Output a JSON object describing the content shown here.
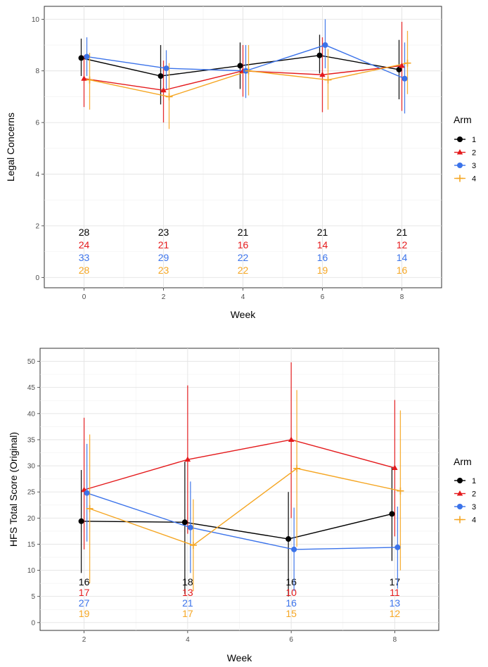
{
  "colors": {
    "1": "#000000",
    "2": "#e41a1c",
    "3": "#3b73ea",
    "4": "#f5a623"
  },
  "legend": {
    "title": "Arm",
    "items": [
      "1",
      "2",
      "3",
      "4"
    ],
    "placement": "right"
  },
  "chart_data": [
    {
      "type": "line",
      "xlabel": "Week",
      "ylabel": "Legal Concerns",
      "xlim": [
        -1.0,
        9.0
      ],
      "ylim": [
        -0.4,
        10.5
      ],
      "xticks": [
        "0",
        "2",
        "4",
        "6",
        "8"
      ],
      "yticks": [
        "0",
        "2",
        "4",
        "6",
        "8",
        "10"
      ],
      "grid": true,
      "x": [
        0,
        2,
        4,
        6,
        8
      ],
      "series": [
        {
          "name": "1",
          "values": [
            8.5,
            7.8,
            8.2,
            8.6,
            8.05
          ],
          "lower": [
            7.8,
            6.7,
            7.3,
            7.9,
            6.9
          ],
          "upper": [
            9.25,
            9.0,
            9.1,
            9.4,
            9.2
          ],
          "n": [
            "28",
            "23",
            "21",
            "21",
            "21"
          ]
        },
        {
          "name": "2",
          "values": [
            7.7,
            7.25,
            8.0,
            7.85,
            8.2
          ],
          "lower": [
            6.6,
            6.0,
            7.0,
            6.4,
            6.45
          ],
          "upper": [
            8.6,
            8.4,
            9.0,
            9.3,
            9.9
          ],
          "n": [
            "24",
            "21",
            "16",
            "14",
            "12"
          ]
        },
        {
          "name": "3",
          "values": [
            8.55,
            8.1,
            8.0,
            9.0,
            7.7
          ],
          "lower": [
            7.8,
            7.3,
            6.95,
            8.1,
            6.35
          ],
          "upper": [
            9.3,
            8.8,
            9.0,
            10.0,
            9.1
          ],
          "n": [
            "33",
            "29",
            "22",
            "16",
            "14"
          ]
        },
        {
          "name": "4",
          "values": [
            7.65,
            7.0,
            8.0,
            7.65,
            8.3
          ],
          "lower": [
            6.5,
            5.75,
            7.05,
            6.5,
            7.1
          ],
          "upper": [
            8.7,
            8.3,
            9.0,
            8.85,
            9.55
          ],
          "n": [
            "28",
            "23",
            "22",
            "19",
            "16"
          ]
        }
      ]
    },
    {
      "type": "line",
      "xlabel": "Week",
      "ylabel": "HFS Total Score (Original)",
      "xlim": [
        1.15,
        8.85
      ],
      "ylim": [
        -1.5,
        52.5
      ],
      "xticks": [
        "2",
        "4",
        "6",
        "8"
      ],
      "yticks": [
        "0",
        "5",
        "10",
        "15",
        "20",
        "25",
        "30",
        "35",
        "40",
        "45",
        "50"
      ],
      "grid": true,
      "x": [
        2,
        4,
        6,
        8
      ],
      "series": [
        {
          "name": "1",
          "values": [
            19.4,
            19.2,
            16.0,
            20.8
          ],
          "lower": [
            9.5,
            5.5,
            5.0,
            11.8
          ],
          "upper": [
            29.2,
            30.8,
            25.0,
            29.8
          ],
          "n": [
            "16",
            "18",
            "16",
            "17"
          ]
        },
        {
          "name": "2",
          "values": [
            25.4,
            31.2,
            35.0,
            29.6
          ],
          "lower": [
            14.0,
            17.0,
            20.0,
            16.5
          ],
          "upper": [
            39.2,
            45.4,
            49.8,
            42.6
          ],
          "n": [
            "17",
            "13",
            "10",
            "11"
          ]
        },
        {
          "name": "3",
          "values": [
            24.8,
            18.2,
            14.0,
            14.4
          ],
          "lower": [
            15.5,
            9.5,
            6.0,
            6.5
          ],
          "upper": [
            34.2,
            27.0,
            22.0,
            22.2
          ],
          "n": [
            "27",
            "21",
            "16",
            "13"
          ]
        },
        {
          "name": "4",
          "values": [
            21.8,
            14.8,
            29.5,
            25.2
          ],
          "lower": [
            7.5,
            6.0,
            14.5,
            10.0
          ],
          "upper": [
            36.0,
            23.6,
            44.5,
            40.6
          ],
          "n": [
            "19",
            "17",
            "15",
            "12"
          ]
        }
      ]
    }
  ]
}
